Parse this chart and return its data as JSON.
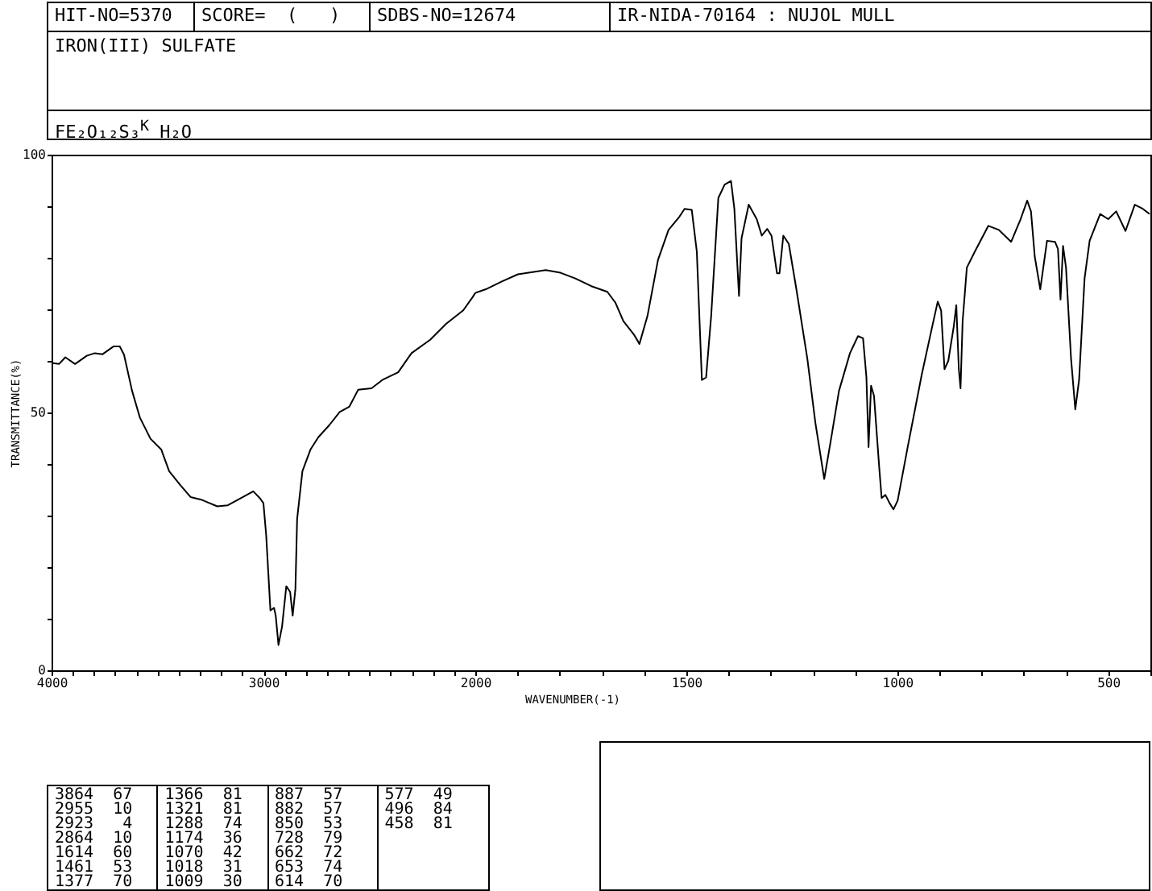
{
  "chart_data": [
    {
      "type": "line",
      "title": "IRON(III) SULFATE",
      "subtitle": "FE₂O₁₂S₃$^{K}$ H₂O",
      "ylabel": "TRANSMITTANCE(%)",
      "annotations": [
        "HIT-NO=5370",
        "SCORE=  (   )",
        "SDBS-NO=12674",
        "IR-NIDA-70164 : NUJOL MULL",
        "3864  67",
        "2955  10",
        "2923   4",
        "2864  10",
        "1614  60",
        "1461  53",
        "1377  70",
        "1366  81",
        "1321  81",
        "1288  74",
        "1174  36",
        "1070  42",
        "1018  31",
        "1009  30",
        "887  57",
        "882  57",
        "850  53",
        "728  79",
        "662  72",
        "653  74",
        "614  70",
        "577  49",
        "496  84",
        "458  81"
      ],
      "x": [
        4000,
        3965,
        3935,
        3889,
        3834,
        3796,
        3759,
        3708,
        3678,
        3658,
        3620,
        3583,
        3533,
        3482,
        3445,
        3394,
        3344,
        3294,
        3218,
        3168,
        3105,
        3048,
        3017,
        3000,
        2987,
        2967,
        2950,
        2942,
        2929,
        2912,
        2892,
        2874,
        2862,
        2849,
        2841,
        2816,
        2778,
        2741,
        2690,
        2640,
        2595,
        2553,
        2490,
        2439,
        2364,
        2301,
        2213,
        2138,
        2057,
        2012,
        2000
      ],
      "series": [
        {
          "color": "#000000",
          "values": [
            59.6,
            59.4,
            60.7,
            59.4,
            61,
            61.5,
            61.3,
            62.8,
            62.8,
            61.2,
            54.2,
            49,
            44.9,
            42.8,
            38.6,
            36,
            33.6,
            33.1,
            31.8,
            32,
            33.4,
            34.7,
            33.4,
            32.4,
            26.2,
            11.6,
            12.1,
            10.6,
            4.9,
            8.5,
            16.3,
            15.2,
            10.6,
            15.8,
            29.3,
            38.6,
            42.8,
            45.2,
            47.5,
            50.1,
            51.1,
            54.4,
            54.7,
            56.3,
            57.8,
            61.5,
            64.1,
            67.2,
            69.8,
            72.4,
            73.2
          ]
        }
      ],
      "xlim": [
        4000,
        2000
      ],
      "xticks": [
        4000,
        {
          "value": 3900,
          "label": null
        },
        {
          "value": 3800,
          "label": null
        },
        {
          "value": 3700,
          "label": null
        },
        {
          "value": 3600,
          "label": null
        },
        {
          "value": 3500,
          "label": null
        },
        {
          "value": 3400,
          "label": null
        },
        {
          "value": 3300,
          "label": null
        },
        {
          "value": 3200,
          "label": null
        },
        {
          "value": 3100,
          "label": null
        },
        3000,
        {
          "value": 2900,
          "label": null
        },
        {
          "value": 2800,
          "label": null
        },
        {
          "value": 2700,
          "label": null
        },
        {
          "value": 2600,
          "label": null
        },
        {
          "value": 2500,
          "label": null
        },
        {
          "value": 2400,
          "label": null
        },
        {
          "value": 2300,
          "label": null
        },
        {
          "value": 2200,
          "label": null
        },
        {
          "value": 2100,
          "label": null
        },
        2000
      ],
      "ylim": [
        0,
        100
      ],
      "yticks": [
        0,
        {
          "value": 10,
          "label": null
        },
        {
          "value": 20,
          "label": null
        },
        {
          "value": 30,
          "label": null
        },
        {
          "value": 40,
          "label": null
        },
        50,
        {
          "value": 60,
          "label": null
        },
        {
          "value": 70,
          "label": null
        },
        {
          "value": 80,
          "label": null
        },
        {
          "value": 90,
          "label": null
        },
        100
      ]
    },
    {
      "type": "line",
      "xlabel": "WAVENUMBER(-1)",
      "x": [
        2000,
        1975,
        1937,
        1899,
        1833,
        1798,
        1763,
        1725,
        1687,
        1668,
        1649,
        1624,
        1611,
        1592,
        1567,
        1542,
        1516,
        1504,
        1487,
        1475,
        1463,
        1453,
        1441,
        1424,
        1409,
        1394,
        1386,
        1375,
        1369,
        1352,
        1333,
        1321,
        1308,
        1298,
        1285,
        1279,
        1270,
        1257,
        1239,
        1213,
        1194,
        1173,
        1159,
        1138,
        1112,
        1093,
        1081,
        1073,
        1068,
        1062,
        1055,
        1043,
        1037,
        1028,
        1018,
        1009,
        999,
        974,
        942,
        917,
        904,
        896,
        888,
        879,
        866,
        860,
        854,
        850,
        845,
        835,
        816,
        784,
        759,
        730,
        708,
        692,
        683,
        674,
        661,
        645,
        626,
        619,
        613,
        607,
        600,
        588,
        578,
        569,
        556,
        544,
        519,
        500,
        481,
        459,
        437,
        418,
        402
      ],
      "series": [
        {
          "color": "#000000",
          "values": [
            73.2,
            73.9,
            75.4,
            76.8,
            77.6,
            77.1,
            76,
            74.5,
            73.4,
            71.3,
            67.7,
            65.1,
            63.3,
            68.7,
            79.6,
            85.4,
            88,
            89.5,
            89.3,
            81.2,
            56.3,
            56.8,
            68.7,
            91.6,
            94.2,
            94.9,
            89.5,
            72.6,
            83.8,
            90.3,
            87.5,
            84.3,
            85.6,
            84.3,
            77,
            77,
            84.3,
            82.7,
            73.9,
            60.4,
            48,
            37.1,
            43.8,
            54.2,
            61.5,
            64.8,
            64.4,
            56.8,
            43.3,
            55.2,
            53.2,
            39.7,
            33.4,
            34,
            32.4,
            31.2,
            32.9,
            43.8,
            57.3,
            66.7,
            71.5,
            69.8,
            58.4,
            60,
            66.7,
            70.8,
            58.4,
            54.7,
            67.7,
            78.1,
            81.2,
            86.2,
            85.4,
            83.1,
            87.4,
            91.1,
            89,
            80.2,
            73.9,
            83.3,
            83.1,
            81.7,
            71.9,
            82.3,
            78.1,
            60.4,
            50.6,
            56.3,
            76,
            83.3,
            88.5,
            87.5,
            89,
            85.2,
            90.3,
            89.5,
            88.5
          ]
        }
      ],
      "xlim": [
        2000,
        400
      ],
      "xticks": [
        {
          "value": 1900,
          "label": null
        },
        {
          "value": 1800,
          "label": null
        },
        {
          "value": 1700,
          "label": null
        },
        {
          "value": 1600,
          "label": null
        },
        1500,
        {
          "value": 1400,
          "label": null
        },
        {
          "value": 1300,
          "label": null
        },
        {
          "value": 1200,
          "label": null
        },
        {
          "value": 1100,
          "label": null
        },
        1000,
        {
          "value": 900,
          "label": null
        },
        {
          "value": 800,
          "label": null
        },
        {
          "value": 700,
          "label": null
        },
        {
          "value": 600,
          "label": null
        },
        500,
        {
          "value": 400,
          "label": null
        }
      ],
      "ylim": [
        0,
        100
      ],
      "tick_labels": "x"
    }
  ]
}
